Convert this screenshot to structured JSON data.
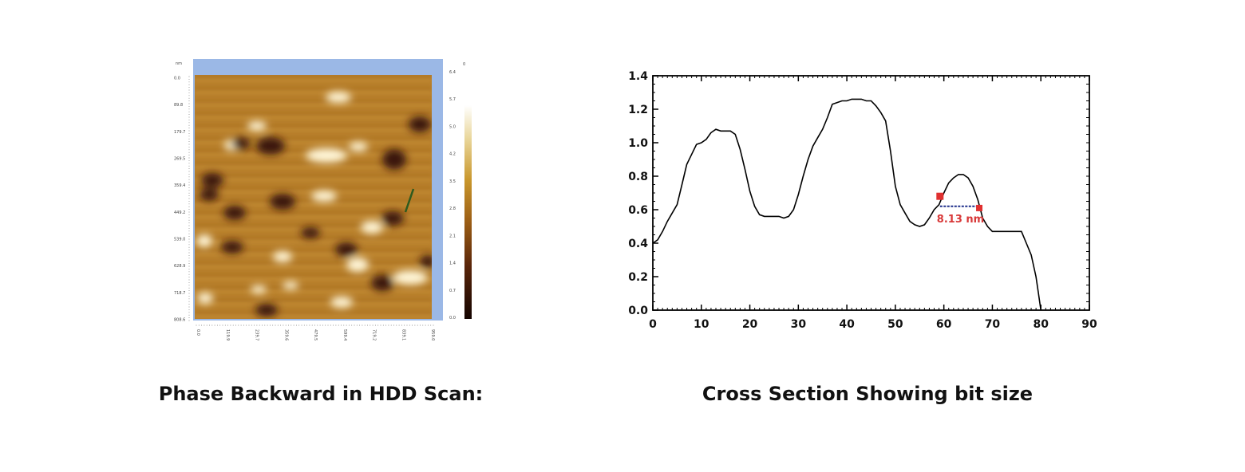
{
  "captions": {
    "left": "Phase Backward in HDD Scan:",
    "right": "Cross Section Showing bit size"
  },
  "afm_image": {
    "unit_label": "nm",
    "y_ticks": [
      "0.0",
      "89.8",
      "179.7",
      "269.5",
      "359.4",
      "449.2",
      "539.0",
      "628.9",
      "718.7",
      "808.6"
    ],
    "x_ticks": [
      "0.0",
      "119.9",
      "239.7",
      "359.6",
      "479.5",
      "599.4",
      "719.2",
      "839.1",
      "959.0"
    ],
    "colorbar_ticks": [
      "6.4",
      "5.7",
      "5.0",
      "4.2",
      "3.5",
      "2.8",
      "2.1",
      "1.4",
      "0.7",
      "0.0"
    ],
    "colorbar_zero_label": "0",
    "colors": {
      "frame": "#9bb8e6",
      "background": "#b8802a",
      "bright": "#fff6d8",
      "dark": "#3a1808",
      "marker": "#2e5a1e"
    }
  },
  "chart_data": {
    "type": "line",
    "title": "",
    "xlabel": "",
    "ylabel": "",
    "xlim": [
      0,
      90
    ],
    "ylim": [
      0,
      1.4
    ],
    "x_ticks": [
      "0",
      "10",
      "20",
      "30",
      "40",
      "50",
      "60",
      "70",
      "80",
      "90"
    ],
    "y_ticks": [
      "0.0",
      "0.2",
      "0.4",
      "0.6",
      "0.8",
      "1.0",
      "1.2",
      "1.4"
    ],
    "grid": false,
    "series": [
      {
        "x": [
          0,
          1,
          2,
          3,
          4,
          5,
          6,
          7,
          8,
          9,
          10,
          11,
          12,
          13,
          14,
          15,
          16,
          17,
          18,
          19,
          20,
          21,
          22,
          23,
          24,
          25,
          26,
          27,
          28,
          29,
          30,
          31,
          32,
          33,
          34,
          35,
          36,
          37,
          38,
          39,
          40,
          41,
          42,
          43,
          44,
          45,
          46,
          47,
          48,
          49,
          50,
          51,
          52,
          53,
          54,
          55,
          56,
          57,
          58,
          59,
          60,
          61,
          62,
          63,
          64,
          65,
          66,
          67,
          68,
          69,
          70,
          71,
          72,
          73,
          74,
          75,
          76,
          77,
          78,
          79,
          79.5,
          80
        ],
        "y": [
          0.4,
          0.42,
          0.47,
          0.53,
          0.58,
          0.63,
          0.75,
          0.87,
          0.93,
          0.99,
          1.0,
          1.02,
          1.06,
          1.08,
          1.07,
          1.07,
          1.07,
          1.05,
          0.96,
          0.84,
          0.71,
          0.62,
          0.57,
          0.56,
          0.56,
          0.56,
          0.56,
          0.55,
          0.56,
          0.6,
          0.69,
          0.8,
          0.9,
          0.98,
          1.03,
          1.08,
          1.15,
          1.23,
          1.24,
          1.25,
          1.25,
          1.26,
          1.26,
          1.26,
          1.25,
          1.25,
          1.22,
          1.18,
          1.13,
          0.95,
          0.74,
          0.63,
          0.58,
          0.53,
          0.51,
          0.5,
          0.51,
          0.55,
          0.6,
          0.63,
          0.7,
          0.76,
          0.79,
          0.81,
          0.81,
          0.79,
          0.74,
          0.66,
          0.55,
          0.5,
          0.47,
          0.47,
          0.47,
          0.47,
          0.47,
          0.47,
          0.47,
          0.4,
          0.33,
          0.2,
          0.1,
          0.0
        ]
      }
    ],
    "annotation": {
      "label": "8.13 nm",
      "x_start": 59.2,
      "x_end": 67.3,
      "y_level": 0.62,
      "start_marker_y": 0.68,
      "end_marker_y": 0.61,
      "marker_color": "#e03030",
      "line_color": "#1e2e8a",
      "label_color": "#d83838"
    }
  }
}
